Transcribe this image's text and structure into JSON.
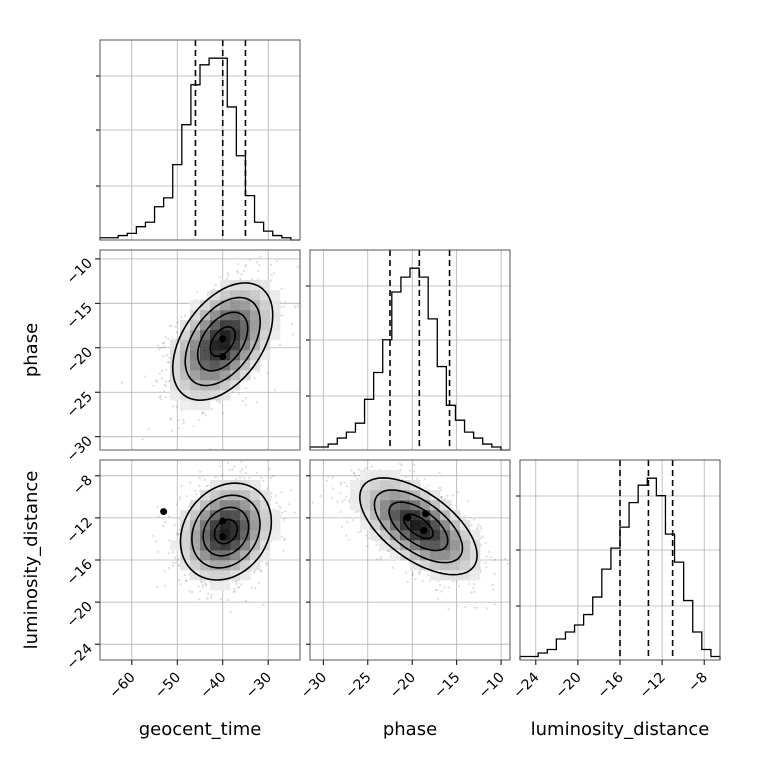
{
  "chart_data": {
    "type": "corner",
    "variables": [
      "geocent_time",
      "phase",
      "luminosity_distance"
    ],
    "axis_labels": {
      "geocent_time": "geocent_time",
      "phase": "phase",
      "luminosity_distance": "luminosity_distance"
    },
    "ranges": {
      "geocent_time": [
        -67,
        -23
      ],
      "phase": [
        -31.5,
        -9
      ],
      "luminosity_distance": [
        -25.5,
        -6.5
      ]
    },
    "ticks": {
      "geocent_time": [
        -60,
        -50,
        -40,
        -30
      ],
      "phase": [
        -30,
        -25,
        -20,
        -15,
        -10
      ],
      "luminosity_distance": [
        -24,
        -20,
        -16,
        -12,
        -8
      ]
    },
    "tick_labels": {
      "geocent_time": [
        "−60",
        "−50",
        "−40",
        "−30"
      ],
      "phase": [
        "−30",
        "−25",
        "−20",
        "−15",
        "−10"
      ],
      "luminosity_distance": [
        "−24",
        "−20",
        "−16",
        "−12",
        "−8"
      ]
    },
    "quantiles": {
      "geocent_time": [
        -46,
        -40,
        -35
      ],
      "phase": [
        -22.5,
        -19.2,
        -15.8
      ],
      "luminosity_distance": [
        -16,
        -13.3,
        -11
      ]
    },
    "histograms": {
      "geocent_time": {
        "range": [
          -67,
          -23
        ],
        "counts": [
          1,
          1,
          2,
          3,
          6,
          8,
          15,
          19,
          34,
          52,
          70,
          79,
          82,
          82,
          60,
          38,
          20,
          8,
          4,
          2,
          1,
          0
        ]
      },
      "phase": {
        "range": [
          -31.5,
          -9
        ],
        "counts": [
          1,
          1,
          2,
          4,
          6,
          9,
          17,
          26,
          37,
          53,
          58,
          61,
          58,
          44,
          28,
          15,
          10,
          6,
          4,
          2,
          1,
          0
        ]
      },
      "luminosity_distance": {
        "range": [
          -25.5,
          -6.5
        ],
        "counts": [
          1,
          1,
          2,
          3,
          6,
          8,
          10,
          13,
          18,
          26,
          32,
          38,
          45,
          50,
          52,
          47,
          36,
          28,
          17,
          8,
          3,
          1
        ]
      }
    },
    "pairs": [
      {
        "x": "geocent_time",
        "y": "phase",
        "center": [
          -40,
          -19.3
        ],
        "sigma": [
          5.5,
          3.3
        ],
        "rho": 0.45,
        "mode_points": [
          [
            -40,
            -19
          ],
          [
            -40,
            -21
          ]
        ]
      },
      {
        "x": "geocent_time",
        "y": "luminosity_distance",
        "center": [
          -39.3,
          -13.3
        ],
        "sigma": [
          5.0,
          2.3
        ],
        "rho": 0.2,
        "mode_points": [
          [
            -40,
            -12.3
          ],
          [
            -40,
            -13.8
          ],
          [
            -53,
            -11.4
          ]
        ]
      },
      {
        "x": "phase",
        "y": "luminosity_distance",
        "center": [
          -19.3,
          -12.8
        ],
        "sigma": [
          3.3,
          2.3
        ],
        "rho": -0.6,
        "mode_points": [
          [
            -20.5,
            -12
          ],
          [
            -18.5,
            -11.6
          ],
          [
            -18.7,
            -13.2
          ]
        ]
      }
    ],
    "contour_levels_sigma": [
      0.5,
      1.0,
      1.5,
      2.0
    ],
    "grid": true,
    "colors": {
      "hist": "#000000",
      "contour": "#000000",
      "grid": "#b0b0b0",
      "points": "#444444"
    }
  }
}
